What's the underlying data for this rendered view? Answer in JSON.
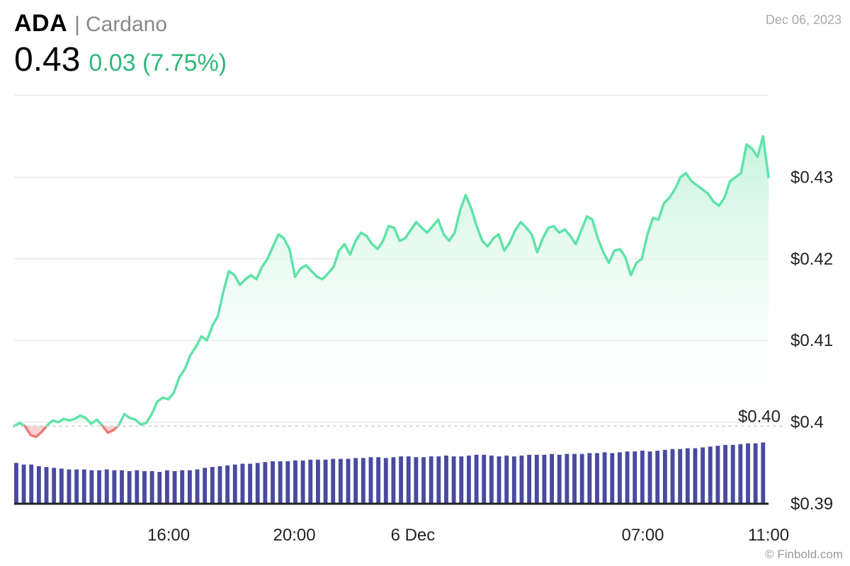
{
  "header": {
    "ticker": "ADA",
    "separator": "|",
    "name": "Cardano",
    "price": "0.43",
    "change": "0.03 (7.75%)",
    "date": "Dec 06, 2023",
    "watermark": "© Finbold.com"
  },
  "colors": {
    "up": "#5fe3a8",
    "up_fill": "#d9f8ea",
    "down": "#f07a7a",
    "down_fill": "#f9d4d4",
    "volume": "#4a4aa0",
    "grid": "#e0e0e0",
    "change_text": "#2fb87a"
  },
  "chart_data": {
    "type": "area",
    "title": "",
    "xlabel": "",
    "ylabel": "",
    "ylim": [
      0.39,
      0.44
    ],
    "yticks": [
      "$0.43",
      "$0.42",
      "$0.41",
      "$0.4",
      "$0.39"
    ],
    "ytick_values": [
      0.43,
      0.42,
      0.41,
      0.4,
      0.39
    ],
    "xticks": [
      "16:00",
      "20:00",
      "6 Dec",
      "07:00",
      "11:00"
    ],
    "xtick_index": [
      43,
      78,
      111,
      175,
      210
    ],
    "baseline": 0.3995,
    "baseline_label": "$0.40",
    "price_points": [
      0.3995,
      0.3999,
      0.3995,
      0.3984,
      0.3982,
      0.3988,
      0.3996,
      0.4002,
      0.4,
      0.4004,
      0.4002,
      0.4004,
      0.4008,
      0.4005,
      0.3998,
      0.4003,
      0.3996,
      0.3987,
      0.399,
      0.3996,
      0.401,
      0.4005,
      0.4003,
      0.3997,
      0.3999,
      0.401,
      0.4025,
      0.403,
      0.4028,
      0.4036,
      0.4055,
      0.4065,
      0.4082,
      0.4092,
      0.4105,
      0.41,
      0.4118,
      0.413,
      0.416,
      0.4185,
      0.418,
      0.4168,
      0.4175,
      0.418,
      0.4175,
      0.419,
      0.42,
      0.4215,
      0.423,
      0.4225,
      0.4212,
      0.4178,
      0.4188,
      0.4192,
      0.4185,
      0.4178,
      0.4175,
      0.4182,
      0.419,
      0.421,
      0.4218,
      0.4205,
      0.4222,
      0.4232,
      0.4228,
      0.4218,
      0.4212,
      0.4222,
      0.424,
      0.4238,
      0.4222,
      0.4225,
      0.4235,
      0.4245,
      0.4238,
      0.4232,
      0.424,
      0.4248,
      0.423,
      0.4222,
      0.4232,
      0.426,
      0.4278,
      0.4262,
      0.424,
      0.4222,
      0.4215,
      0.4225,
      0.423,
      0.421,
      0.422,
      0.4235,
      0.4245,
      0.4238,
      0.423,
      0.4208,
      0.4225,
      0.4238,
      0.424,
      0.4232,
      0.4236,
      0.4228,
      0.4218,
      0.4235,
      0.4252,
      0.4248,
      0.4225,
      0.4208,
      0.4195,
      0.421,
      0.4212,
      0.4202,
      0.418,
      0.4195,
      0.42,
      0.423,
      0.425,
      0.4248,
      0.4268,
      0.4275,
      0.4285,
      0.43,
      0.4305,
      0.4295,
      0.429,
      0.4285,
      0.428,
      0.427,
      0.4265,
      0.4275,
      0.4295,
      0.43,
      0.4305,
      0.434,
      0.4335,
      0.4325,
      0.435,
      0.43
    ],
    "volume_points": [
      0.395,
      0.3948,
      0.3948,
      0.3946,
      0.3945,
      0.3944,
      0.3943,
      0.3942,
      0.3942,
      0.3942,
      0.3941,
      0.3941,
      0.3942,
      0.3941,
      0.3941,
      0.394,
      0.3941,
      0.394,
      0.394,
      0.3939,
      0.3941,
      0.394,
      0.3941,
      0.3941,
      0.3942,
      0.3944,
      0.3945,
      0.3946,
      0.3947,
      0.3948,
      0.3949,
      0.3949,
      0.395,
      0.3951,
      0.3952,
      0.3952,
      0.3952,
      0.3953,
      0.3953,
      0.3954,
      0.3954,
      0.3954,
      0.3955,
      0.3955,
      0.3955,
      0.3956,
      0.3956,
      0.3957,
      0.3957,
      0.3956,
      0.3957,
      0.3958,
      0.3958,
      0.3957,
      0.3957,
      0.3958,
      0.3958,
      0.3959,
      0.3958,
      0.3958,
      0.3959,
      0.396,
      0.396,
      0.3959,
      0.3958,
      0.3959,
      0.3958,
      0.3959,
      0.396,
      0.396,
      0.396,
      0.3961,
      0.396,
      0.3961,
      0.3961,
      0.3961,
      0.3962,
      0.3962,
      0.3963,
      0.3962,
      0.3963,
      0.3964,
      0.3964,
      0.3965,
      0.3964,
      0.3965,
      0.3966,
      0.3967,
      0.3967,
      0.3968,
      0.3968,
      0.3969,
      0.397,
      0.3971,
      0.3972,
      0.3972,
      0.3973,
      0.3974,
      0.3974,
      0.3975
    ]
  }
}
